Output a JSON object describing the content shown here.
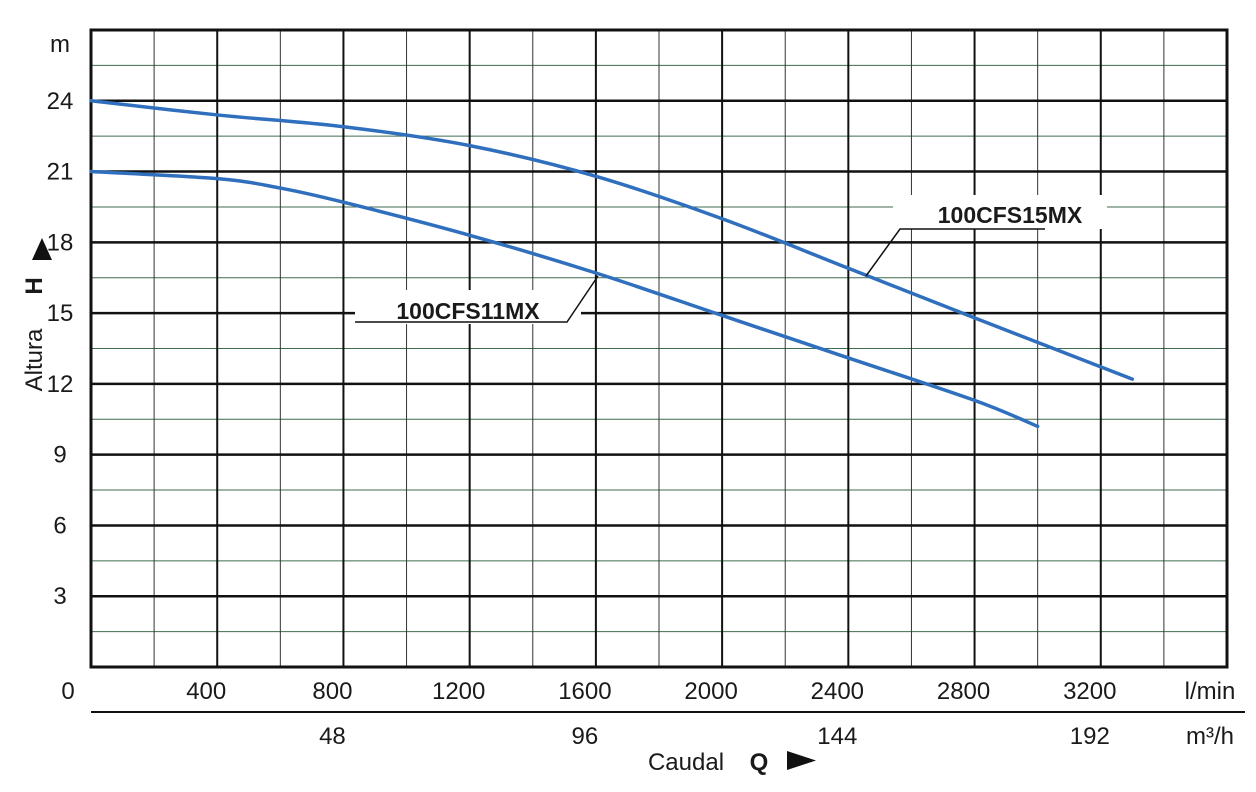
{
  "chart_data": {
    "type": "line",
    "xlabel": "Caudal",
    "xlabel_symbol": "Q",
    "ylabel": "Altura",
    "ylabel_symbol": "H",
    "y_unit": "m",
    "x_unit": "l/min",
    "x2_unit": "m³/h",
    "xlim": [
      0,
      3600
    ],
    "ylim": [
      0,
      27
    ],
    "y_ticks": [
      0,
      3,
      6,
      9,
      12,
      15,
      18,
      21,
      24
    ],
    "x_ticks": [
      400,
      800,
      1200,
      1600,
      2000,
      2400,
      2800,
      3200
    ],
    "x2_ticks": [
      {
        "value": 48,
        "at": 800
      },
      {
        "value": 96,
        "at": 1600
      },
      {
        "value": 144,
        "at": 2400
      },
      {
        "value": 192,
        "at": 3200
      }
    ],
    "origin_label": "0",
    "grid": true,
    "line_color": "#2f6fbd",
    "series": [
      {
        "name": "100CFS15MX",
        "points": [
          [
            0,
            24.0
          ],
          [
            400,
            23.4
          ],
          [
            800,
            22.9
          ],
          [
            1200,
            22.1
          ],
          [
            1600,
            20.8
          ],
          [
            2000,
            19.0
          ],
          [
            2400,
            16.9
          ],
          [
            2800,
            14.8
          ],
          [
            3300,
            12.2
          ]
        ]
      },
      {
        "name": "100CFS11MX",
        "points": [
          [
            0,
            21.0
          ],
          [
            400,
            20.7
          ],
          [
            600,
            20.3
          ],
          [
            800,
            19.7
          ],
          [
            1200,
            18.3
          ],
          [
            1600,
            16.7
          ],
          [
            2000,
            14.9
          ],
          [
            2400,
            13.1
          ],
          [
            2800,
            11.3
          ],
          [
            3000,
            10.2
          ]
        ]
      }
    ]
  }
}
